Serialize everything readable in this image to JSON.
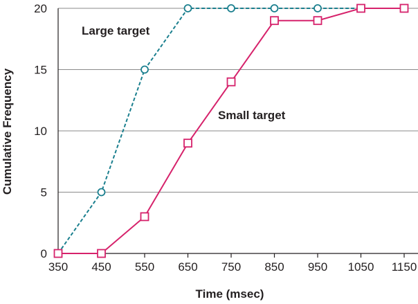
{
  "chart_data": {
    "type": "line",
    "xlabel": "Time (msec)",
    "ylabel": "Cumulative Frequency",
    "x": [
      350,
      450,
      550,
      650,
      750,
      850,
      950,
      1050,
      1150
    ],
    "x_tick_labels": [
      "350",
      "450",
      "550",
      "650",
      "750",
      "850",
      "950",
      "1050",
      "1150"
    ],
    "y_ticks": [
      0,
      5,
      10,
      15,
      20
    ],
    "y_tick_labels": [
      "0",
      "5",
      "10",
      "15",
      "20"
    ],
    "xlim": [
      350,
      1150
    ],
    "ylim": [
      0,
      20
    ],
    "grid": "horizontal",
    "series": [
      {
        "name": "Large target",
        "values": [
          0,
          5,
          15,
          20,
          20,
          20,
          20,
          20,
          20
        ],
        "color": "#1a7f8e",
        "line_style": "dashed",
        "marker": "circle"
      },
      {
        "name": "Small target",
        "values": [
          0,
          0,
          3,
          9,
          14,
          19,
          19,
          20,
          20
        ],
        "color": "#d6226b",
        "line_style": "solid",
        "marker": "square"
      }
    ]
  }
}
